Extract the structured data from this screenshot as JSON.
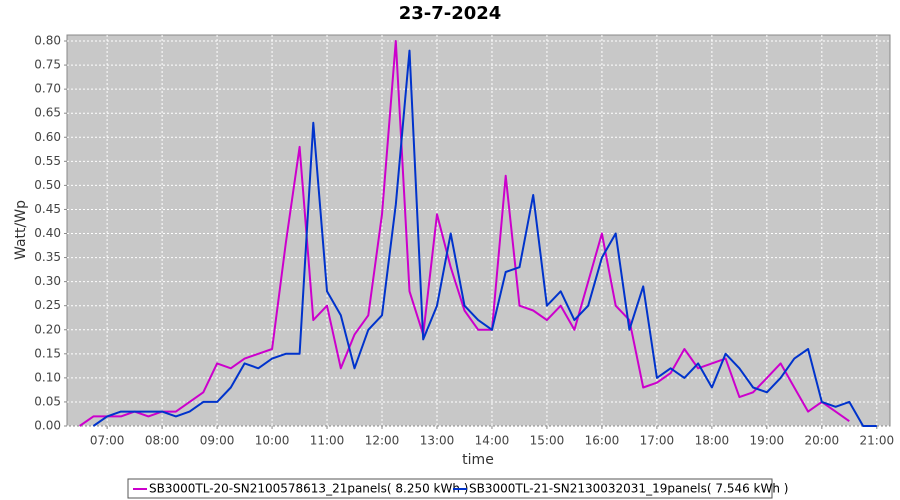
{
  "chart_data": {
    "type": "line",
    "title": "23-7-2024",
    "x_label": "time",
    "y_label": "Watt/Wp",
    "x": [
      6.5,
      6.75,
      7,
      7.25,
      7.5,
      7.75,
      8,
      8.25,
      8.5,
      8.75,
      9,
      9.25,
      9.5,
      9.75,
      10,
      10.25,
      10.5,
      10.75,
      11,
      11.25,
      11.5,
      11.75,
      12,
      12.25,
      12.5,
      12.75,
      13,
      13.25,
      13.5,
      13.75,
      14,
      14.25,
      14.5,
      14.75,
      15,
      15.25,
      15.5,
      15.75,
      16,
      16.25,
      16.5,
      16.75,
      17,
      17.25,
      17.5,
      17.75,
      18,
      18.25,
      18.5,
      18.75,
      19,
      19.25,
      19.5,
      19.75,
      20,
      20.25,
      20.5,
      20.75,
      21
    ],
    "series": [
      {
        "name": "SB3000TL-20-SN2100578613_21panels( 8.250 kWh )",
        "color": "#cc00cc",
        "values": [
          0,
          0.02,
          0.02,
          0.02,
          0.03,
          0.02,
          0.03,
          0.03,
          0.05,
          0.07,
          0.13,
          0.12,
          0.14,
          0.15,
          0.16,
          0.38,
          0.58,
          0.22,
          0.25,
          0.12,
          0.19,
          0.23,
          0.44,
          0.8,
          0.28,
          0.19,
          0.44,
          0.33,
          0.24,
          0.2,
          0.2,
          0.52,
          0.25,
          0.24,
          0.22,
          0.25,
          0.2,
          0.3,
          0.4,
          0.25,
          0.22,
          0.08,
          0.09,
          0.11,
          0.16,
          0.12,
          0.13,
          0.14,
          0.06,
          0.07,
          0.1,
          0.13,
          0.08,
          0.03,
          0.05,
          0.03,
          0.01,
          null,
          null
        ]
      },
      {
        "name": "SB3000TL-21-SN2130032031_19panels( 7.546 kWh )",
        "color": "#0033cc",
        "values": [
          null,
          0,
          0.02,
          0.03,
          0.03,
          0.03,
          0.03,
          0.02,
          0.03,
          0.05,
          0.05,
          0.08,
          0.13,
          0.12,
          0.14,
          0.15,
          0.15,
          0.63,
          0.28,
          0.23,
          0.12,
          0.2,
          0.23,
          0.46,
          0.78,
          0.18,
          0.25,
          0.4,
          0.25,
          0.22,
          0.2,
          0.32,
          0.33,
          0.48,
          0.25,
          0.28,
          0.22,
          0.25,
          0.35,
          0.4,
          0.2,
          0.29,
          0.1,
          0.12,
          0.1,
          0.13,
          0.08,
          0.15,
          0.12,
          0.08,
          0.07,
          0.1,
          0.14,
          0.16,
          0.05,
          0.04,
          0.05,
          0,
          0
        ]
      }
    ],
    "xlim": [
      6.27,
      21.24
    ],
    "xticks": [
      {
        "value": 7,
        "label": "07:00"
      },
      {
        "value": 8,
        "label": "08:00"
      },
      {
        "value": 9,
        "label": "09:00"
      },
      {
        "value": 10,
        "label": "10:00"
      },
      {
        "value": 11,
        "label": "11:00"
      },
      {
        "value": 12,
        "label": "12:00"
      },
      {
        "value": 13,
        "label": "13:00"
      },
      {
        "value": 14,
        "label": "14:00"
      },
      {
        "value": 15,
        "label": "15:00"
      },
      {
        "value": 16,
        "label": "16:00"
      },
      {
        "value": 17,
        "label": "17:00"
      },
      {
        "value": 18,
        "label": "18:00"
      },
      {
        "value": 19,
        "label": "19:00"
      },
      {
        "value": 20,
        "label": "20:00"
      },
      {
        "value": 21,
        "label": "21:00"
      }
    ],
    "ylim": [
      0,
      0.8125
    ],
    "yticks": [
      {
        "value": 0,
        "label": "0.00"
      },
      {
        "value": 0.05,
        "label": "0.05"
      },
      {
        "value": 0.1,
        "label": "0.10"
      },
      {
        "value": 0.15,
        "label": "0.15"
      },
      {
        "value": 0.2,
        "label": "0.20"
      },
      {
        "value": 0.25,
        "label": "0.25"
      },
      {
        "value": 0.3,
        "label": "0.30"
      },
      {
        "value": 0.35,
        "label": "0.35"
      },
      {
        "value": 0.4,
        "label": "0.40"
      },
      {
        "value": 0.45,
        "label": "0.45"
      },
      {
        "value": 0.5,
        "label": "0.50"
      },
      {
        "value": 0.55,
        "label": "0.55"
      },
      {
        "value": 0.6,
        "label": "0.60"
      },
      {
        "value": 0.65,
        "label": "0.65"
      },
      {
        "value": 0.7,
        "label": "0.70"
      },
      {
        "value": 0.75,
        "label": "0.75"
      },
      {
        "value": 0.8,
        "label": "0.80"
      }
    ],
    "grid": true
  }
}
